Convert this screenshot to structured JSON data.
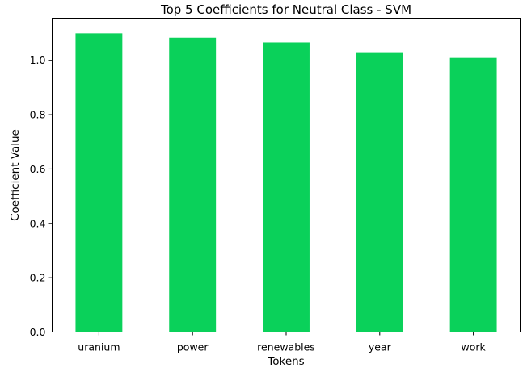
{
  "chart_data": {
    "type": "bar",
    "title": "Top 5 Coefficients for Neutral Class - SVM",
    "xlabel": "Tokens",
    "ylabel": "Coefficient Value",
    "categories": [
      "uranium",
      "power",
      "renewables",
      "year",
      "work"
    ],
    "values": [
      1.099,
      1.083,
      1.066,
      1.027,
      1.009
    ],
    "ylim": [
      0,
      1.155
    ],
    "yticks": [
      "0.0",
      "0.2",
      "0.4",
      "0.6",
      "0.8",
      "1.0"
    ],
    "bar_color": "#0ad15a",
    "grid": false,
    "legend": "none"
  }
}
